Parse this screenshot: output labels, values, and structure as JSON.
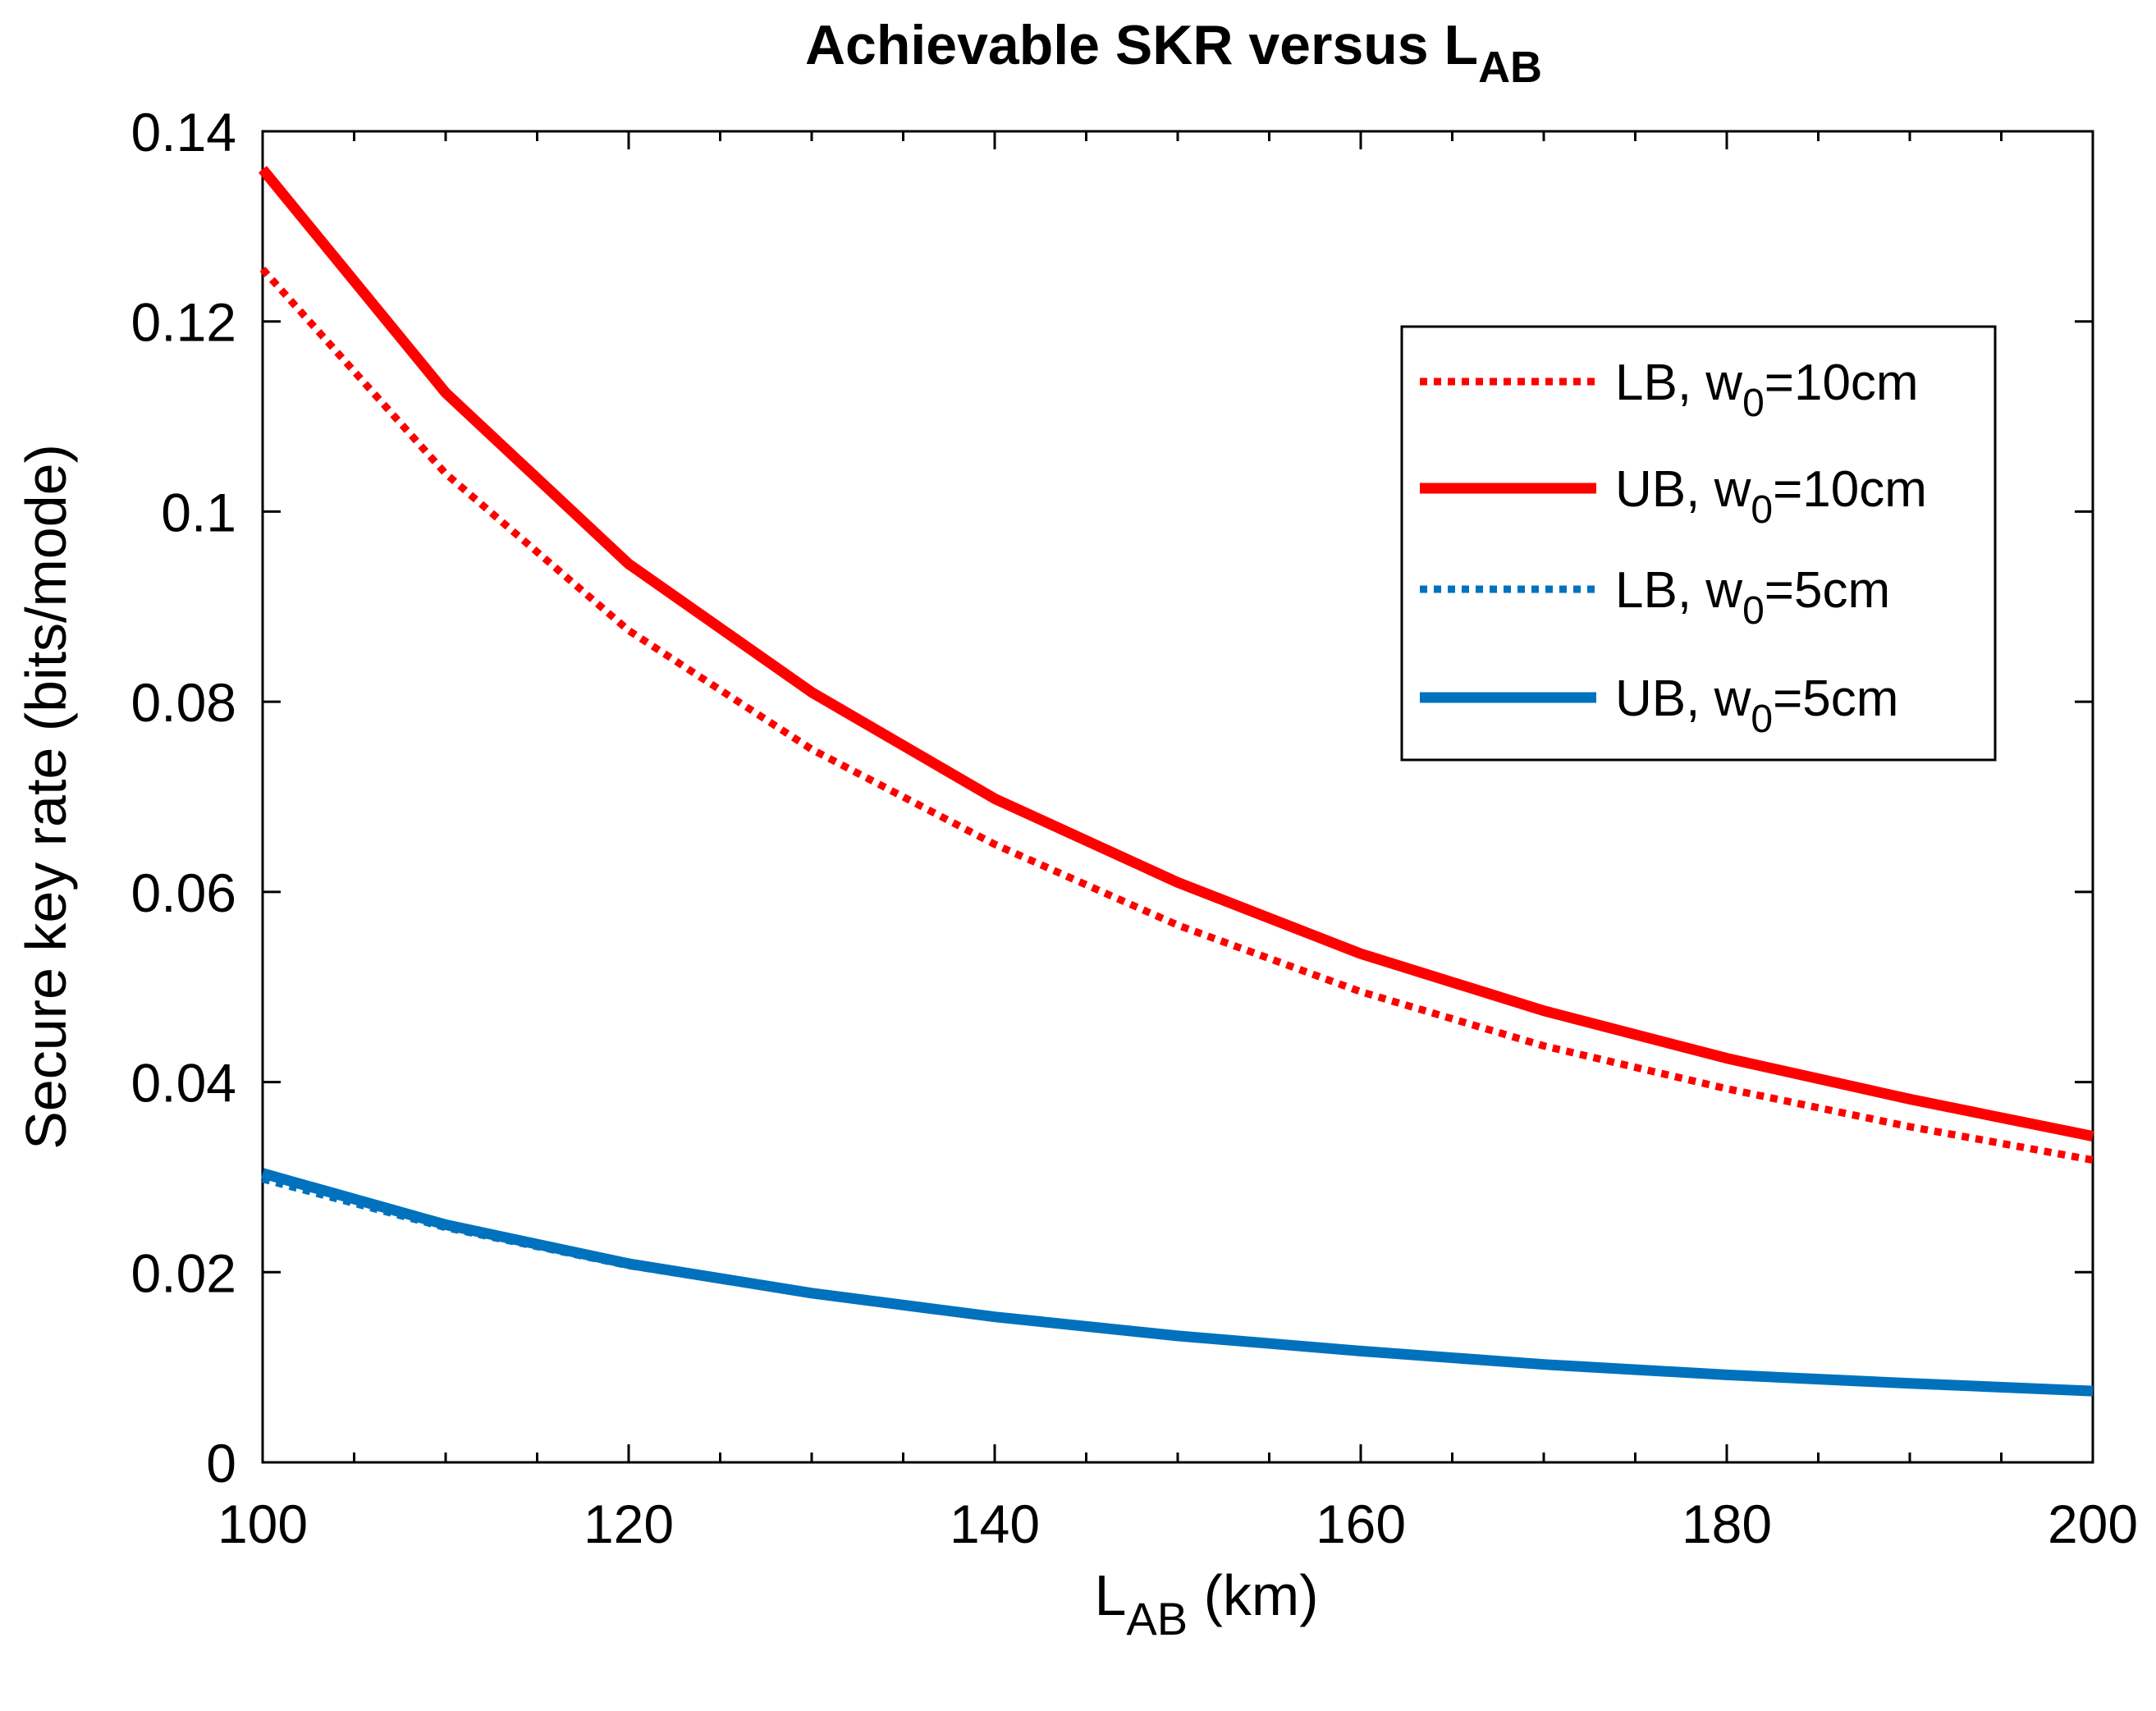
{
  "chart_data": {
    "type": "line",
    "title": "Achievable SKR versus L",
    "title_subscript": "AB",
    "xlabel": "L",
    "xlabel_subscript": "AB",
    "xlabel_suffix": " (km)",
    "ylabel": "Secure key rate (bits/mode)",
    "xlim": [
      100,
      200
    ],
    "ylim": [
      0,
      0.14
    ],
    "x_ticks": [
      100,
      120,
      140,
      160,
      180,
      200
    ],
    "x_tick_labels": [
      "100",
      "120",
      "140",
      "160",
      "180",
      "200"
    ],
    "y_ticks": [
      0,
      0.02,
      0.04,
      0.06,
      0.08,
      0.1,
      0.12,
      0.14
    ],
    "y_tick_labels": [
      "0",
      "0.02",
      "0.04",
      "0.06",
      "0.08",
      "0.1",
      "0.12",
      "0.14"
    ],
    "grid": false,
    "legend_position": "top-right",
    "x": [
      100,
      110,
      120,
      130,
      140,
      150,
      160,
      170,
      180,
      190,
      200
    ],
    "series": [
      {
        "name": "LB, w0=10cm",
        "legend_prefix": "LB, w",
        "legend_sub": "0",
        "legend_suffix": "=10cm",
        "color": "#ff0000",
        "style": "dotted",
        "values": [
          0.1255,
          0.104,
          0.0875,
          0.075,
          0.065,
          0.0565,
          0.0495,
          0.0438,
          0.0393,
          0.0353,
          0.0318
        ]
      },
      {
        "name": "UB, w0=10cm",
        "legend_prefix": "UB, w",
        "legend_sub": "0",
        "legend_suffix": "=10cm",
        "color": "#ff0000",
        "style": "solid",
        "values": [
          0.136,
          0.1125,
          0.0945,
          0.081,
          0.0698,
          0.061,
          0.0535,
          0.0475,
          0.0425,
          0.0382,
          0.0343
        ]
      },
      {
        "name": "LB, w0=5cm",
        "legend_prefix": "LB, w",
        "legend_sub": "0",
        "legend_suffix": "=5cm",
        "color": "#0072bd",
        "style": "dotted",
        "values": [
          0.0298,
          0.0247,
          0.0207,
          0.0177,
          0.0152,
          0.0132,
          0.0116,
          0.0102,
          0.0091,
          0.0082,
          0.0074
        ]
      },
      {
        "name": "UB, w0=5cm",
        "legend_prefix": "UB, w",
        "legend_sub": "0",
        "legend_suffix": "=5cm",
        "color": "#0072bd",
        "style": "solid",
        "values": [
          0.0304,
          0.025,
          0.0209,
          0.0178,
          0.0153,
          0.0133,
          0.0117,
          0.0103,
          0.0092,
          0.0083,
          0.0075
        ]
      }
    ]
  }
}
